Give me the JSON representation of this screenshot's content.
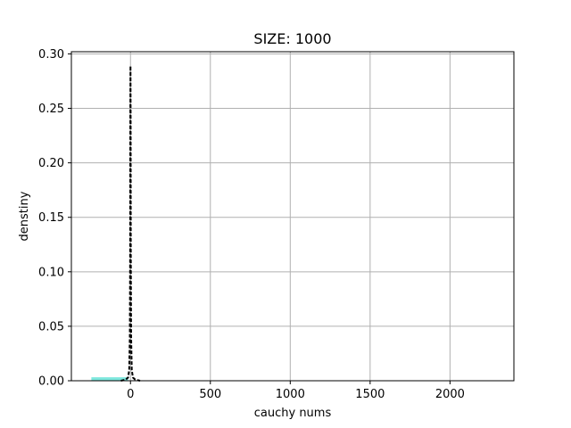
{
  "chart_data": {
    "type": "bar",
    "title": "SIZE: 1000",
    "xlabel": "cauchy nums",
    "ylabel": "denstiny",
    "xlim": [
      -370,
      2400
    ],
    "ylim": [
      0,
      0.302
    ],
    "xticks": [
      0,
      500,
      1000,
      1500,
      2000
    ],
    "yticks": [
      0.0,
      0.05,
      0.1,
      0.15,
      0.2,
      0.25,
      0.3
    ],
    "xtick_labels": [
      "0",
      "500",
      "1000",
      "1500",
      "2000"
    ],
    "ytick_labels": [
      "0.00",
      "0.05",
      "0.10",
      "0.15",
      "0.20",
      "0.25",
      "0.30"
    ],
    "grid": true,
    "series": [
      {
        "type": "histogram",
        "bins": [
          [
            -245,
            -15,
            0.0032
          ]
        ]
      },
      {
        "type": "density_line",
        "points": [
          [
            -60,
            0.0
          ],
          [
            -30,
            0.001
          ],
          [
            -15,
            0.003
          ],
          [
            -8,
            0.01
          ],
          [
            -4,
            0.04
          ],
          [
            -2,
            0.12
          ],
          [
            -1,
            0.24
          ],
          [
            0,
            0.289
          ],
          [
            1,
            0.24
          ],
          [
            2,
            0.12
          ],
          [
            4,
            0.04
          ],
          [
            8,
            0.01
          ],
          [
            15,
            0.003
          ],
          [
            30,
            0.001
          ],
          [
            60,
            0.0
          ]
        ]
      }
    ],
    "colors": {
      "histogram": "#7fe8de",
      "line": "#000000",
      "grid": "#b0b0b0"
    }
  }
}
